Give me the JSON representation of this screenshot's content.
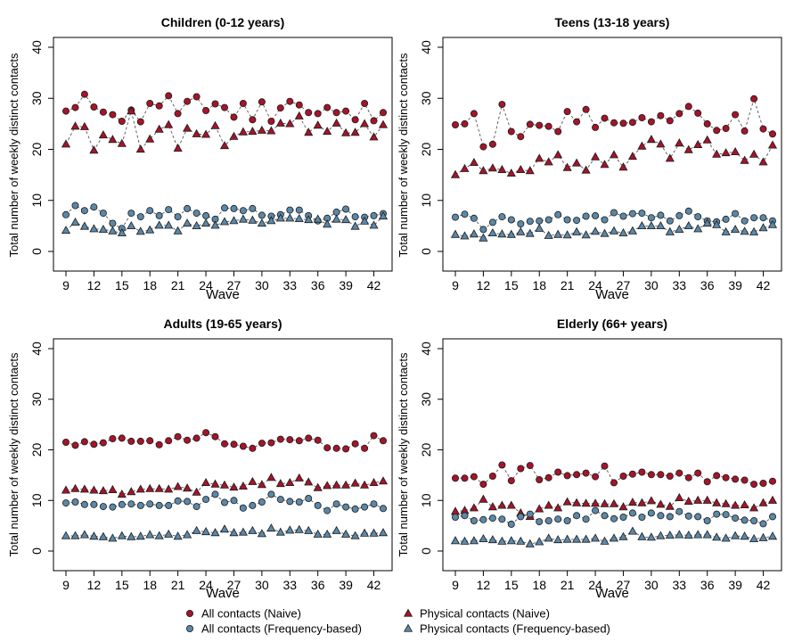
{
  "colors": {
    "naive": "#a5142a",
    "freq": "#5b88a8",
    "marker_stroke": "#1a1a1a",
    "line": "#555555"
  },
  "chart_data": [
    {
      "type": "scatter",
      "title": "Children (0-12 years)",
      "xlabel": "Wave",
      "ylabel": "Total number of weekly distinct contacts",
      "xlim": [
        9,
        43
      ],
      "ylim": [
        0,
        40
      ],
      "xticks": [
        "9",
        "12",
        "15",
        "18",
        "21",
        "24",
        "27",
        "30",
        "33",
        "36",
        "39",
        "42"
      ],
      "yticks": [
        "0",
        "10",
        "20",
        "30",
        "40"
      ],
      "x": [
        9,
        10,
        11,
        12,
        13,
        14,
        15,
        16,
        17,
        18,
        19,
        20,
        21,
        22,
        23,
        24,
        25,
        26,
        27,
        28,
        29,
        30,
        31,
        32,
        33,
        34,
        35,
        36,
        37,
        38,
        39,
        40,
        41,
        42,
        43
      ],
      "series": [
        {
          "name": "All contacts (Naive)",
          "marker": "circle",
          "color": "naive",
          "values": [
            27.5,
            28.2,
            30.8,
            28.3,
            27.3,
            26.8,
            25.5,
            27.7,
            25.4,
            29.0,
            28.5,
            30.5,
            27.0,
            29.4,
            30.3,
            27.6,
            28.9,
            28.2,
            26.3,
            29.0,
            25.8,
            29.3,
            25.5,
            28.1,
            29.4,
            28.7,
            27.2,
            27.0,
            28.2,
            27.2,
            27.5,
            25.8,
            29.0,
            25.6,
            27.2
          ]
        },
        {
          "name": "Physical contacts (Naive)",
          "marker": "triangle",
          "color": "naive",
          "values": [
            21.0,
            24.5,
            24.4,
            19.8,
            22.8,
            21.9,
            21.1,
            27.5,
            20.0,
            22.0,
            23.9,
            24.8,
            20.2,
            24.1,
            23.0,
            22.9,
            24.6,
            20.7,
            22.5,
            23.4,
            23.5,
            23.7,
            23.6,
            25.1,
            25.0,
            26.5,
            23.3,
            24.7,
            23.5,
            25.1,
            23.2,
            23.3,
            25.0,
            22.4,
            24.8
          ]
        },
        {
          "name": "All contacts (Frequency-based)",
          "marker": "circle",
          "color": "freq",
          "values": [
            7.2,
            9.0,
            8.0,
            8.7,
            7.5,
            5.5,
            4.5,
            7.5,
            6.8,
            8.0,
            7.0,
            8.2,
            6.8,
            8.4,
            7.5,
            7.0,
            6.3,
            8.5,
            8.4,
            8.0,
            8.4,
            7.1,
            6.9,
            7.2,
            8.1,
            8.1,
            7.0,
            6.0,
            6.5,
            7.7,
            8.3,
            6.8,
            6.7,
            7.0,
            7.4
          ]
        },
        {
          "name": "Physical contacts (Frequency-based)",
          "marker": "triangle",
          "color": "freq",
          "values": [
            4.1,
            5.7,
            4.9,
            4.4,
            4.3,
            4.0,
            3.6,
            5.0,
            3.9,
            4.2,
            5.1,
            5.1,
            4.0,
            5.5,
            5.0,
            5.5,
            5.1,
            5.8,
            6.0,
            6.3,
            6.1,
            5.5,
            6.0,
            6.5,
            6.5,
            6.4,
            6.2,
            6.3,
            5.3,
            6.3,
            6.2,
            4.9,
            5.9,
            5.1,
            6.9
          ]
        }
      ]
    },
    {
      "type": "scatter",
      "title": "Teens (13-18 years)",
      "xlabel": "Wave",
      "ylabel": "Total number of weekly distinct contacts",
      "xlim": [
        9,
        43
      ],
      "ylim": [
        0,
        40
      ],
      "xticks": [
        "9",
        "12",
        "15",
        "18",
        "21",
        "24",
        "27",
        "30",
        "33",
        "36",
        "39",
        "42"
      ],
      "yticks": [
        "0",
        "10",
        "20",
        "30",
        "40"
      ],
      "x": [
        9,
        10,
        11,
        12,
        13,
        14,
        15,
        16,
        17,
        18,
        19,
        20,
        21,
        22,
        23,
        24,
        25,
        26,
        27,
        28,
        29,
        30,
        31,
        32,
        33,
        34,
        35,
        36,
        37,
        38,
        39,
        40,
        41,
        42,
        43
      ],
      "series": [
        {
          "name": "All contacts (Naive)",
          "marker": "circle",
          "color": "naive",
          "values": [
            24.8,
            25.0,
            27.0,
            20.5,
            21.0,
            28.8,
            23.5,
            22.5,
            24.9,
            24.7,
            24.5,
            23.5,
            27.4,
            25.4,
            27.8,
            24.3,
            26.1,
            25.2,
            25.1,
            25.3,
            26.2,
            25.4,
            26.6,
            25.6,
            27.0,
            28.4,
            27.1,
            25.0,
            23.7,
            24.1,
            26.8,
            23.6,
            29.9,
            24.0,
            23.0
          ]
        },
        {
          "name": "Physical contacts (Naive)",
          "marker": "triangle",
          "color": "naive",
          "values": [
            15.0,
            16.2,
            17.4,
            15.8,
            16.3,
            16.0,
            15.3,
            16.0,
            15.8,
            18.2,
            17.5,
            18.9,
            16.4,
            17.3,
            15.9,
            18.5,
            17.0,
            18.9,
            16.5,
            18.6,
            20.6,
            21.9,
            21.0,
            18.2,
            21.2,
            19.9,
            20.9,
            21.8,
            19.0,
            19.3,
            19.5,
            17.8,
            19.0,
            17.5,
            20.8
          ]
        },
        {
          "name": "All contacts (Frequency-based)",
          "marker": "circle",
          "color": "freq",
          "values": [
            6.7,
            7.3,
            6.5,
            4.3,
            5.7,
            6.8,
            6.2,
            5.4,
            5.9,
            6.0,
            6.2,
            7.2,
            6.2,
            6.1,
            6.9,
            7.0,
            6.2,
            7.6,
            6.9,
            7.4,
            7.5,
            6.6,
            7.1,
            6.0,
            7.0,
            7.9,
            6.8,
            6.0,
            5.8,
            6.3,
            7.4,
            6.0,
            6.6,
            6.6,
            6.0
          ]
        },
        {
          "name": "Physical contacts (Frequency-based)",
          "marker": "triangle",
          "color": "freq",
          "values": [
            3.3,
            3.0,
            3.4,
            2.6,
            3.6,
            3.4,
            3.3,
            3.8,
            3.5,
            4.5,
            3.1,
            3.3,
            3.2,
            3.8,
            3.2,
            3.9,
            3.5,
            4.0,
            3.6,
            4.0,
            5.0,
            5.0,
            5.0,
            3.8,
            4.3,
            5.0,
            4.4,
            5.5,
            5.2,
            3.8,
            4.3,
            3.9,
            3.8,
            4.6,
            5.2
          ]
        }
      ]
    },
    {
      "type": "scatter",
      "title": "Adults (19-65 years)",
      "xlabel": "Wave",
      "ylabel": "Total number of weekly distinct contacts",
      "xlim": [
        9,
        43
      ],
      "ylim": [
        0,
        40
      ],
      "xticks": [
        "9",
        "12",
        "15",
        "18",
        "21",
        "24",
        "27",
        "30",
        "33",
        "36",
        "39",
        "42"
      ],
      "yticks": [
        "0",
        "10",
        "20",
        "30",
        "40"
      ],
      "x": [
        9,
        10,
        11,
        12,
        13,
        14,
        15,
        16,
        17,
        18,
        19,
        20,
        21,
        22,
        23,
        24,
        25,
        26,
        27,
        28,
        29,
        30,
        31,
        32,
        33,
        34,
        35,
        36,
        37,
        38,
        39,
        40,
        41,
        42,
        43
      ],
      "series": [
        {
          "name": "All contacts (Naive)",
          "marker": "circle",
          "color": "naive",
          "values": [
            21.5,
            20.9,
            21.6,
            21.1,
            21.4,
            22.2,
            22.3,
            21.7,
            21.7,
            21.8,
            21.0,
            21.8,
            22.6,
            21.9,
            22.3,
            23.4,
            22.6,
            21.2,
            21.1,
            20.7,
            20.3,
            21.3,
            21.4,
            22.1,
            22.0,
            21.8,
            22.3,
            21.9,
            20.4,
            20.3,
            20.2,
            21.2,
            20.3,
            22.8,
            21.8
          ]
        },
        {
          "name": "Physical contacts (Naive)",
          "marker": "triangle",
          "color": "naive",
          "values": [
            12.0,
            12.3,
            12.2,
            12.0,
            11.9,
            12.1,
            11.2,
            11.7,
            12.2,
            12.3,
            12.3,
            12.2,
            12.7,
            12.4,
            11.6,
            13.5,
            13.2,
            13.0,
            12.6,
            12.8,
            13.7,
            13.1,
            14.5,
            13.3,
            13.5,
            14.4,
            13.6,
            12.5,
            12.9,
            13.0,
            13.0,
            13.4,
            13.0,
            13.5,
            13.8
          ]
        },
        {
          "name": "All contacts (Frequency-based)",
          "marker": "circle",
          "color": "freq",
          "values": [
            9.5,
            9.7,
            9.2,
            9.2,
            8.8,
            8.7,
            9.2,
            9.3,
            9.0,
            9.3,
            9.0,
            9.0,
            9.9,
            9.8,
            8.8,
            10.2,
            11.2,
            9.6,
            10.0,
            8.5,
            9.0,
            9.7,
            11.2,
            10.2,
            9.8,
            9.7,
            10.4,
            9.0,
            8.0,
            9.3,
            8.7,
            8.3,
            8.7,
            9.3,
            8.4
          ]
        },
        {
          "name": "Physical contacts (Frequency-based)",
          "marker": "triangle",
          "color": "freq",
          "values": [
            3.0,
            3.0,
            3.2,
            2.9,
            2.8,
            2.5,
            3.0,
            2.8,
            2.9,
            3.2,
            3.0,
            3.3,
            2.9,
            3.2,
            4.0,
            3.8,
            3.6,
            4.3,
            3.6,
            3.7,
            4.0,
            3.4,
            4.5,
            3.7,
            4.1,
            4.2,
            4.0,
            3.3,
            3.3,
            4.0,
            3.3,
            3.0,
            3.5,
            3.5,
            3.6
          ]
        }
      ]
    },
    {
      "type": "scatter",
      "title": "Elderly (66+ years)",
      "xlabel": "Wave",
      "ylabel": "Total number of weekly distinct contacts",
      "xlim": [
        9,
        43
      ],
      "ylim": [
        0,
        40
      ],
      "xticks": [
        "9",
        "12",
        "15",
        "18",
        "21",
        "24",
        "27",
        "30",
        "33",
        "36",
        "39",
        "42"
      ],
      "yticks": [
        "0",
        "10",
        "20",
        "30",
        "40"
      ],
      "x": [
        9,
        10,
        11,
        12,
        13,
        14,
        15,
        16,
        17,
        18,
        19,
        20,
        21,
        22,
        23,
        24,
        25,
        26,
        27,
        28,
        29,
        30,
        31,
        32,
        33,
        34,
        35,
        36,
        37,
        38,
        39,
        40,
        41,
        42,
        43
      ],
      "series": [
        {
          "name": "All contacts (Naive)",
          "marker": "circle",
          "color": "naive",
          "values": [
            14.4,
            14.4,
            14.7,
            13.2,
            14.8,
            17.0,
            13.9,
            16.3,
            16.9,
            14.1,
            14.5,
            15.6,
            14.9,
            15.1,
            15.4,
            14.7,
            16.8,
            13.5,
            14.8,
            15.2,
            15.6,
            15.1,
            15.1,
            14.8,
            15.4,
            14.5,
            15.4,
            13.7,
            14.9,
            14.5,
            14.2,
            14.0,
            13.2,
            13.4,
            13.8
          ]
        },
        {
          "name": "Physical contacts (Naive)",
          "marker": "triangle",
          "color": "naive",
          "values": [
            7.8,
            8.0,
            8.5,
            10.2,
            8.7,
            9.0,
            9.0,
            7.5,
            6.8,
            8.3,
            9.0,
            8.5,
            9.7,
            9.5,
            9.4,
            9.4,
            9.3,
            9.3,
            8.7,
            9.6,
            9.5,
            9.9,
            9.2,
            8.8,
            10.5,
            9.8,
            10.0,
            10.0,
            9.5,
            9.3,
            9.0,
            9.1,
            8.5,
            9.5,
            10.0
          ]
        },
        {
          "name": "All contacts (Frequency-based)",
          "marker": "circle",
          "color": "freq",
          "values": [
            6.7,
            7.0,
            6.0,
            6.2,
            6.5,
            6.3,
            5.3,
            6.8,
            7.3,
            5.8,
            6.0,
            6.3,
            6.0,
            7.0,
            6.3,
            8.0,
            7.0,
            6.4,
            6.7,
            7.5,
            6.7,
            7.5,
            7.0,
            6.8,
            7.8,
            6.9,
            6.8,
            6.0,
            7.3,
            7.2,
            6.5,
            6.1,
            6.0,
            5.4,
            6.8
          ]
        },
        {
          "name": "Physical contacts (Frequency-based)",
          "marker": "triangle",
          "color": "freq",
          "values": [
            2.0,
            1.9,
            2.0,
            2.4,
            2.2,
            1.9,
            2.0,
            1.9,
            1.4,
            1.8,
            2.5,
            2.2,
            2.3,
            2.3,
            2.3,
            2.5,
            1.9,
            2.5,
            2.8,
            3.9,
            2.8,
            2.7,
            3.0,
            3.1,
            3.2,
            3.1,
            3.2,
            3.2,
            2.7,
            2.5,
            3.0,
            2.9,
            2.4,
            2.6,
            2.9
          ]
        }
      ]
    }
  ],
  "legend": [
    {
      "label": "All contacts (Naive)",
      "marker": "circle",
      "color": "naive"
    },
    {
      "label": "Physical contacts (Naive)",
      "marker": "triangle",
      "color": "naive"
    },
    {
      "label": "All contacts (Frequency-based)",
      "marker": "circle",
      "color": "freq"
    },
    {
      "label": "Physical contacts (Frequency-based)",
      "marker": "triangle",
      "color": "freq"
    }
  ]
}
